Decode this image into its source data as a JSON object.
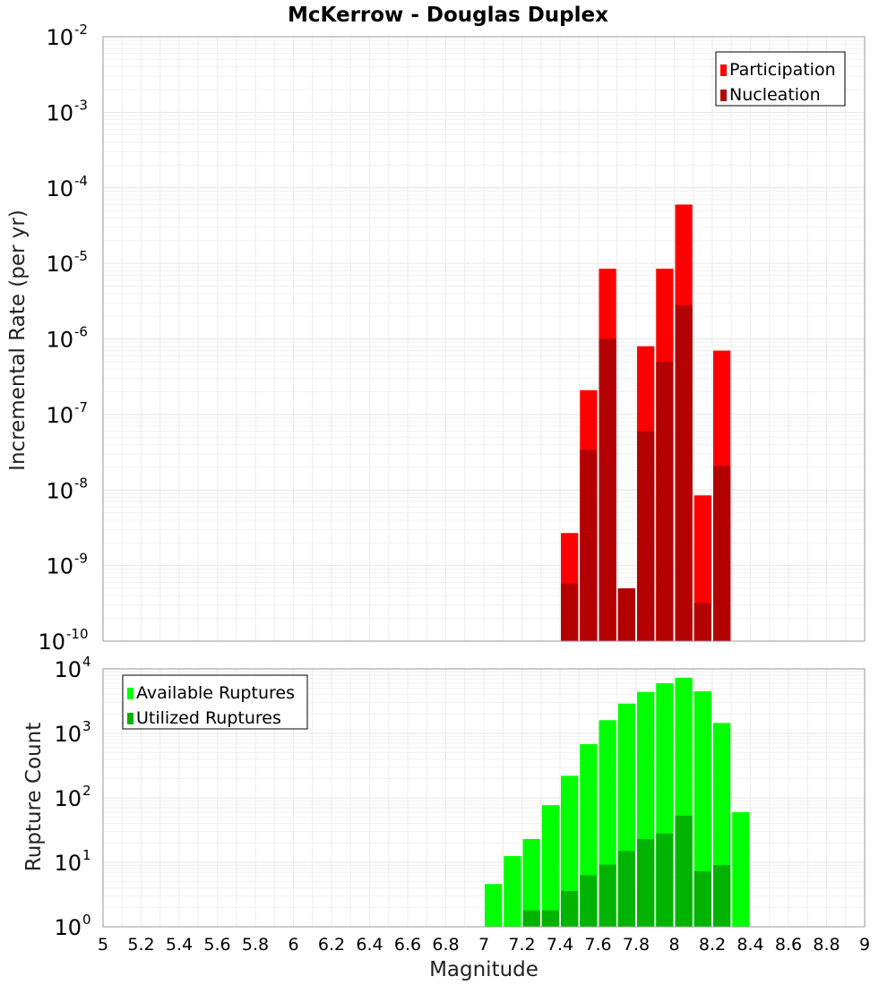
{
  "chart_data": [
    {
      "type": "bar",
      "title": "McKerrow - Douglas Duplex",
      "xlabel": "",
      "ylabel": "Incremental Rate (per yr)",
      "yscale": "log",
      "ylim_exponents": [
        -10,
        -2
      ],
      "xlim": [
        5,
        9
      ],
      "legend_position": "top-right",
      "grid": true,
      "x": [
        7.45,
        7.55,
        7.65,
        7.75,
        7.85,
        7.95,
        8.05,
        8.15,
        8.25
      ],
      "series": [
        {
          "name": "Participation",
          "color": "#ff0000",
          "values": [
            2.7e-09,
            2.1e-07,
            8.5e-06,
            5e-10,
            8e-07,
            8.5e-06,
            6e-05,
            8.5e-09,
            7e-07
          ]
        },
        {
          "name": "Nucleation",
          "color": "#b30000",
          "values": [
            5.8e-10,
            3.4e-08,
            1e-06,
            5e-10,
            6e-08,
            5e-07,
            2.8e-06,
            3.2e-10,
            2.1e-08
          ]
        }
      ]
    },
    {
      "type": "bar",
      "title": "",
      "xlabel": "Magnitude",
      "ylabel": "Rupture Count",
      "yscale": "log",
      "ylim_exponents": [
        0,
        4
      ],
      "xlim": [
        5,
        9
      ],
      "legend_position": "top-left",
      "grid": true,
      "x": [
        6.75,
        6.95,
        7.05,
        7.15,
        7.25,
        7.35,
        7.45,
        7.55,
        7.65,
        7.75,
        7.85,
        7.95,
        8.05,
        8.15,
        8.25,
        8.35
      ],
      "series": [
        {
          "name": "Available Ruptures",
          "color": "#00ff00",
          "values": [
            1,
            1,
            4.6,
            12.5,
            23,
            77,
            220,
            680,
            1600,
            2900,
            4400,
            6000,
            7300,
            4500,
            1450,
            60
          ]
        },
        {
          "name": "Utilized Ruptures",
          "color": "#00b300",
          "values": [
            0,
            0,
            0,
            0,
            1.8,
            1.8,
            3.6,
            6.3,
            9.2,
            15,
            23,
            28,
            53,
            7.3,
            9.1,
            0
          ]
        }
      ]
    }
  ],
  "x_ticks": [
    "5",
    "5.2",
    "5.4",
    "5.6",
    "5.8",
    "6",
    "6.2",
    "6.4",
    "6.6",
    "6.8",
    "7",
    "7.2",
    "7.4",
    "7.6",
    "7.8",
    "8",
    "8.2",
    "8.4",
    "8.6",
    "8.8",
    "9"
  ]
}
